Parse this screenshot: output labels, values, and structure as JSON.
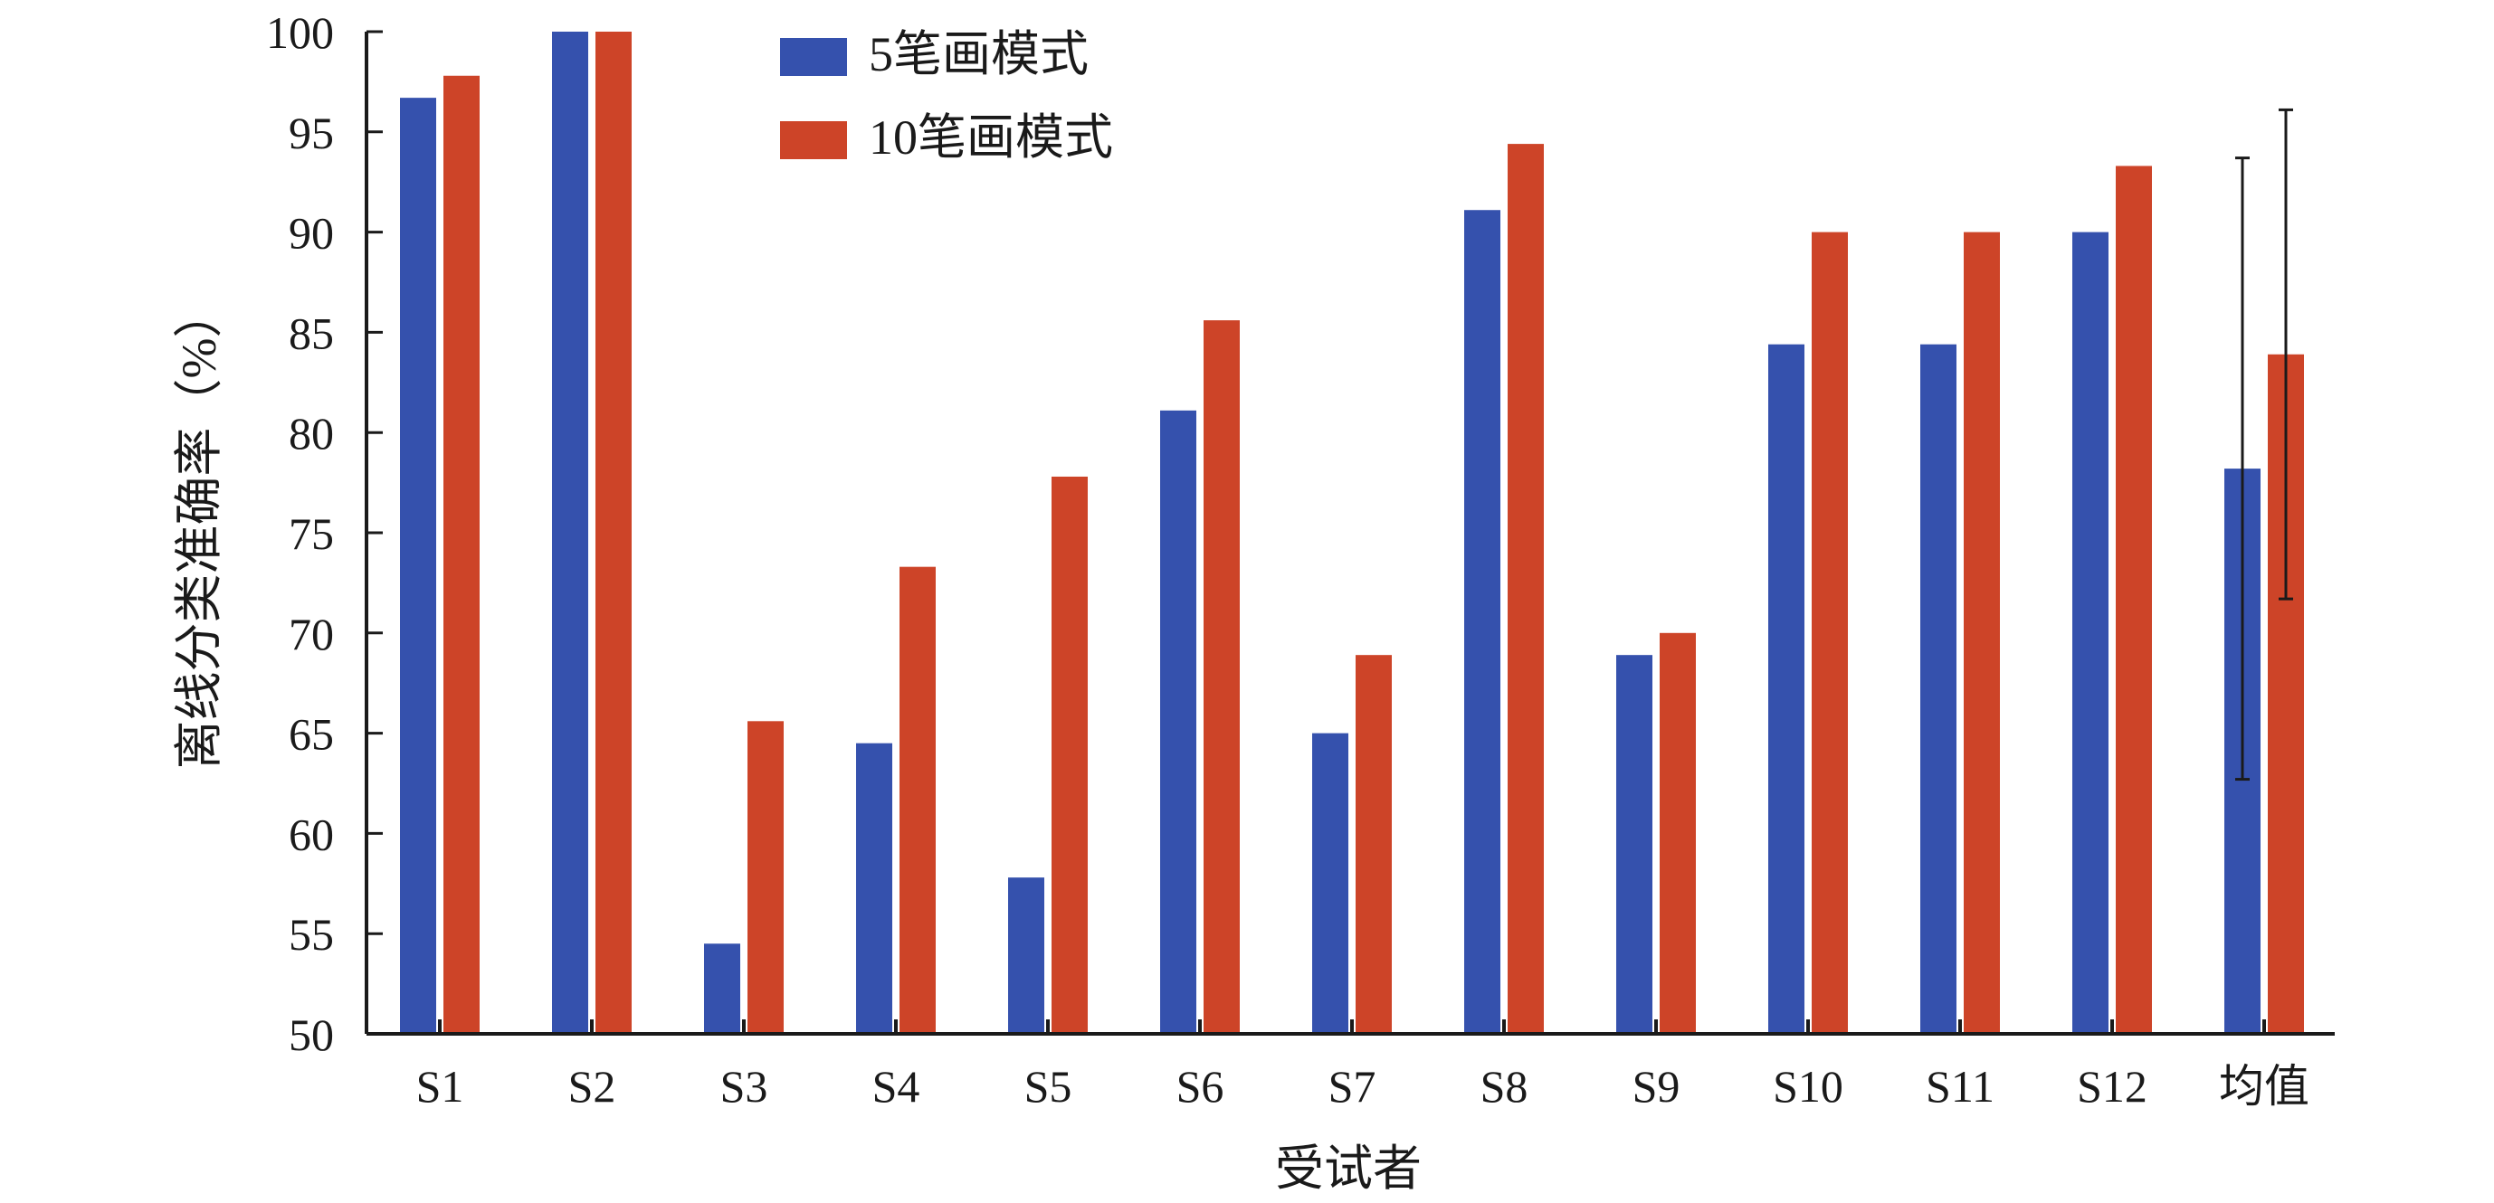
{
  "colors": {
    "series_1": "#3551ad",
    "series_2": "#cd4428",
    "axis": "#1a1a1a",
    "error_bar": "#1a1a1a"
  },
  "chart_data": {
    "type": "bar",
    "xlabel": "受试者",
    "ylabel": "离线分类准确率（%）",
    "ylim": [
      50,
      100
    ],
    "yticks": [
      50,
      55,
      60,
      65,
      70,
      75,
      80,
      85,
      90,
      95,
      100
    ],
    "categories": [
      "S1",
      "S2",
      "S3",
      "S4",
      "S5",
      "S6",
      "S7",
      "S8",
      "S9",
      "S10",
      "S11",
      "S12",
      "均值"
    ],
    "series": [
      {
        "name": "5笔画模式",
        "values": [
          96.7,
          100,
          54.5,
          64.5,
          57.8,
          81.1,
          65.0,
          91.1,
          68.9,
          84.4,
          84.4,
          90.0,
          78.2
        ],
        "error": {
          "category": "均值",
          "low": 62.7,
          "high": 93.7
        }
      },
      {
        "name": "10笔画模式",
        "values": [
          97.8,
          100,
          65.6,
          73.3,
          77.8,
          85.6,
          68.9,
          94.4,
          70.0,
          90.0,
          90.0,
          93.3,
          83.9
        ],
        "error": {
          "category": "均值",
          "low": 71.7,
          "high": 96.1
        }
      }
    ],
    "legend_position": "top-left",
    "grid": false
  }
}
